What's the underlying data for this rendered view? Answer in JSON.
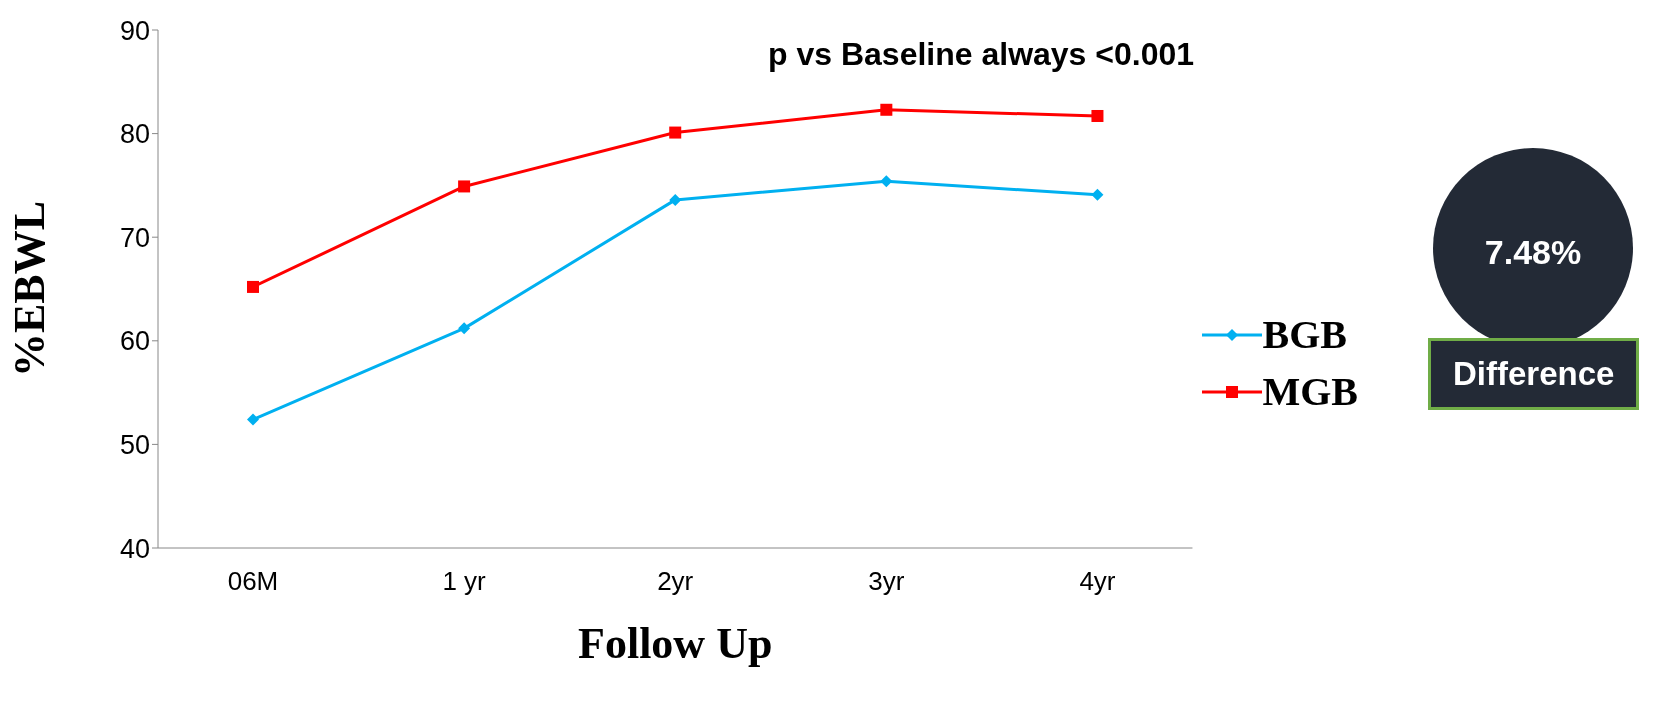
{
  "chart_data": {
    "type": "line",
    "xlabel": "Follow Up",
    "ylabel": "%EBWL",
    "categories": [
      "06M",
      "1 yr",
      "2yr",
      "3yr",
      "4yr"
    ],
    "series": [
      {
        "name": "BGB",
        "color": "#00b0f0",
        "marker": "diamond",
        "values": [
          52.4,
          61.2,
          73.6,
          75.4,
          74.1
        ]
      },
      {
        "name": "MGB",
        "color": "#ff0000",
        "marker": "square",
        "values": [
          65.2,
          74.9,
          80.1,
          82.3,
          81.7
        ]
      }
    ],
    "ylim": [
      40,
      90
    ],
    "yticks": [
      40,
      50,
      60,
      70,
      80,
      90
    ],
    "legend": "right",
    "line_style": "solid",
    "annotations": [
      "p vs Baseline always  <0.001",
      "7.48%",
      "Difference"
    ]
  }
}
